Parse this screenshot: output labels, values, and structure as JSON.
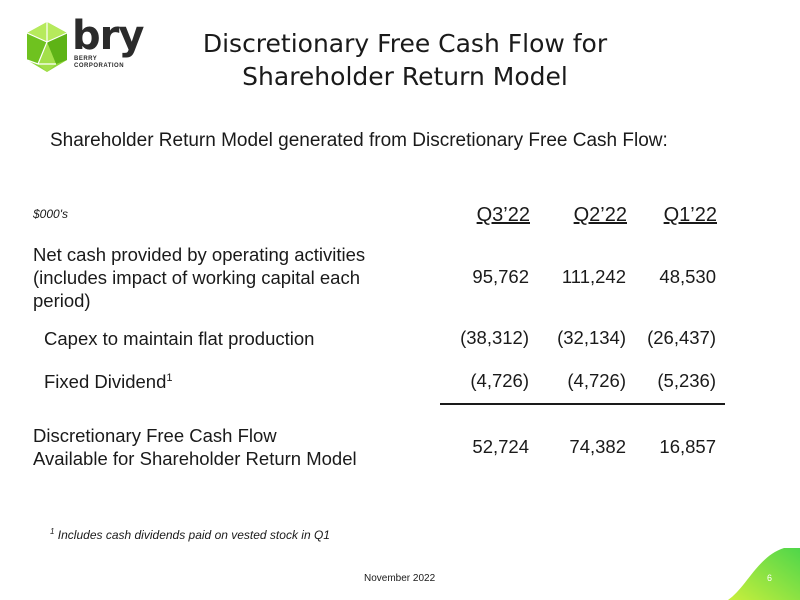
{
  "logo": {
    "name": "bry",
    "sub_line1": "BERRY",
    "sub_line2": "CORPORATION",
    "colors": {
      "green": "#8fd63a",
      "dark": "#2b2b2b"
    }
  },
  "title_line1": "Discretionary Free Cash Flow for",
  "title_line2": "Shareholder Return Model",
  "subtitle": "Shareholder Return Model generated from Discretionary Free Cash Flow:",
  "table": {
    "units": "$000's",
    "columns": [
      "Q3’22",
      "Q2’22",
      "Q1’22"
    ],
    "rows": [
      {
        "label_lines": [
          "Net cash provided by operating activities",
          "(includes impact of working capital each",
          "period)"
        ],
        "values": [
          "95,762",
          "111,242",
          "48,530"
        ]
      },
      {
        "label": "Capex to maintain flat production",
        "values": [
          "(38,312)",
          "(32,134)",
          "(26,437)"
        ]
      },
      {
        "label": "Fixed Dividend",
        "label_sup": "1",
        "values": [
          "(4,726)",
          "(4,726)",
          "(5,236)"
        ]
      },
      {
        "label_lines": [
          "Discretionary Free Cash Flow",
          "Available for Shareholder Return Model"
        ],
        "values": [
          "52,724",
          "74,382",
          "16,857"
        ]
      }
    ]
  },
  "footnote": {
    "marker": "1",
    "text": "Includes cash dividends paid on vested stock in Q1"
  },
  "footer": {
    "date": "November 2022",
    "page": "6",
    "accent_color": "#8fd63a"
  }
}
